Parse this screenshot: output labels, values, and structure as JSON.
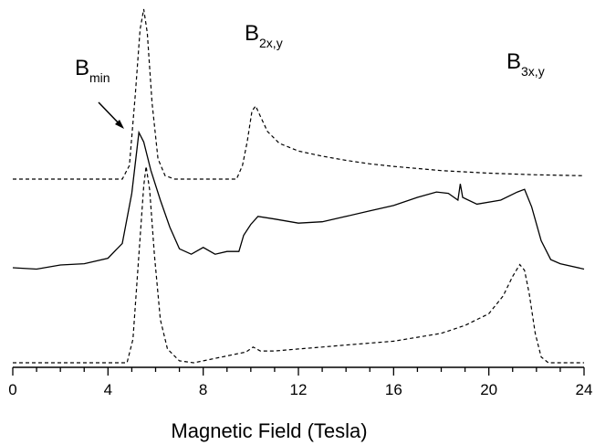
{
  "chart_data": {
    "type": "line",
    "title": "",
    "xlabel": "Magnetic Field (Tesla)",
    "ylabel": "",
    "xlim": [
      0,
      24
    ],
    "x_ticks": [
      "0",
      "4",
      "8",
      "12",
      "16",
      "20",
      "24"
    ],
    "grid": false,
    "legend": "none",
    "annotations": [
      {
        "main": "B",
        "sub": "min",
        "x": 4.6,
        "arrow_to": 5.0
      },
      {
        "main": "B",
        "sub": "2x,y",
        "x": 10.2
      },
      {
        "main": "B",
        "sub": "3x,y",
        "x": 21.2
      }
    ],
    "series": [
      {
        "style": "dashed",
        "color": "#000000",
        "points": [
          [
            0,
            0
          ],
          [
            4.6,
            0
          ],
          [
            4.9,
            0.08
          ],
          [
            5.15,
            0.5
          ],
          [
            5.35,
            0.88
          ],
          [
            5.5,
            1.0
          ],
          [
            5.65,
            0.86
          ],
          [
            5.85,
            0.45
          ],
          [
            6.1,
            0.12
          ],
          [
            6.4,
            0.02
          ],
          [
            6.8,
            0
          ],
          [
            9.4,
            0
          ],
          [
            9.65,
            0.08
          ],
          [
            9.85,
            0.22
          ],
          [
            10.05,
            0.4
          ],
          [
            10.2,
            0.43
          ],
          [
            10.4,
            0.37
          ],
          [
            10.7,
            0.28
          ],
          [
            11.2,
            0.21
          ],
          [
            12,
            0.165
          ],
          [
            13,
            0.135
          ],
          [
            14,
            0.11
          ],
          [
            15,
            0.09
          ],
          [
            16,
            0.075
          ],
          [
            18,
            0.05
          ],
          [
            20,
            0.035
          ],
          [
            22,
            0.025
          ],
          [
            24,
            0.02
          ]
        ]
      },
      {
        "style": "solid",
        "color": "#000000",
        "points": [
          [
            0,
            0
          ],
          [
            1,
            -0.01
          ],
          [
            2,
            0.02
          ],
          [
            3,
            0.03
          ],
          [
            4,
            0.07
          ],
          [
            4.6,
            0.18
          ],
          [
            5.0,
            0.55
          ],
          [
            5.3,
            1.0
          ],
          [
            5.5,
            0.93
          ],
          [
            5.8,
            0.72
          ],
          [
            6.2,
            0.5
          ],
          [
            6.6,
            0.3
          ],
          [
            7.0,
            0.14
          ],
          [
            7.5,
            0.1
          ],
          [
            8.0,
            0.15
          ],
          [
            8.5,
            0.1
          ],
          [
            9.0,
            0.12
          ],
          [
            9.5,
            0.12
          ],
          [
            9.7,
            0.24
          ],
          [
            10.0,
            0.32
          ],
          [
            10.3,
            0.38
          ],
          [
            11,
            0.36
          ],
          [
            12,
            0.33
          ],
          [
            13,
            0.34
          ],
          [
            14,
            0.38
          ],
          [
            15,
            0.42
          ],
          [
            16,
            0.46
          ],
          [
            17,
            0.52
          ],
          [
            17.8,
            0.56
          ],
          [
            18.3,
            0.55
          ],
          [
            18.7,
            0.5
          ],
          [
            18.8,
            0.62
          ],
          [
            18.9,
            0.52
          ],
          [
            19.5,
            0.47
          ],
          [
            20.5,
            0.5
          ],
          [
            21.2,
            0.56
          ],
          [
            21.5,
            0.58
          ],
          [
            21.8,
            0.45
          ],
          [
            22.2,
            0.2
          ],
          [
            22.6,
            0.06
          ],
          [
            23.0,
            0.03
          ],
          [
            24,
            -0.01
          ]
        ]
      },
      {
        "style": "dashed",
        "color": "#000000",
        "points": [
          [
            0,
            0
          ],
          [
            4.8,
            0
          ],
          [
            5.05,
            0.12
          ],
          [
            5.3,
            0.55
          ],
          [
            5.5,
            0.9
          ],
          [
            5.6,
            1.0
          ],
          [
            5.75,
            0.88
          ],
          [
            5.95,
            0.55
          ],
          [
            6.2,
            0.22
          ],
          [
            6.5,
            0.07
          ],
          [
            7.0,
            0.01
          ],
          [
            7.6,
            0
          ],
          [
            8.0,
            0.01
          ],
          [
            9.0,
            0.035
          ],
          [
            9.8,
            0.055
          ],
          [
            10.1,
            0.08
          ],
          [
            10.4,
            0.06
          ],
          [
            11,
            0.06
          ],
          [
            12,
            0.07
          ],
          [
            13,
            0.08
          ],
          [
            14,
            0.09
          ],
          [
            15,
            0.1
          ],
          [
            16,
            0.11
          ],
          [
            17,
            0.13
          ],
          [
            18,
            0.15
          ],
          [
            19,
            0.19
          ],
          [
            20,
            0.25
          ],
          [
            20.6,
            0.34
          ],
          [
            21.0,
            0.44
          ],
          [
            21.3,
            0.5
          ],
          [
            21.5,
            0.47
          ],
          [
            21.7,
            0.35
          ],
          [
            21.95,
            0.15
          ],
          [
            22.2,
            0.03
          ],
          [
            22.5,
            0
          ],
          [
            24,
            0
          ]
        ]
      }
    ]
  }
}
